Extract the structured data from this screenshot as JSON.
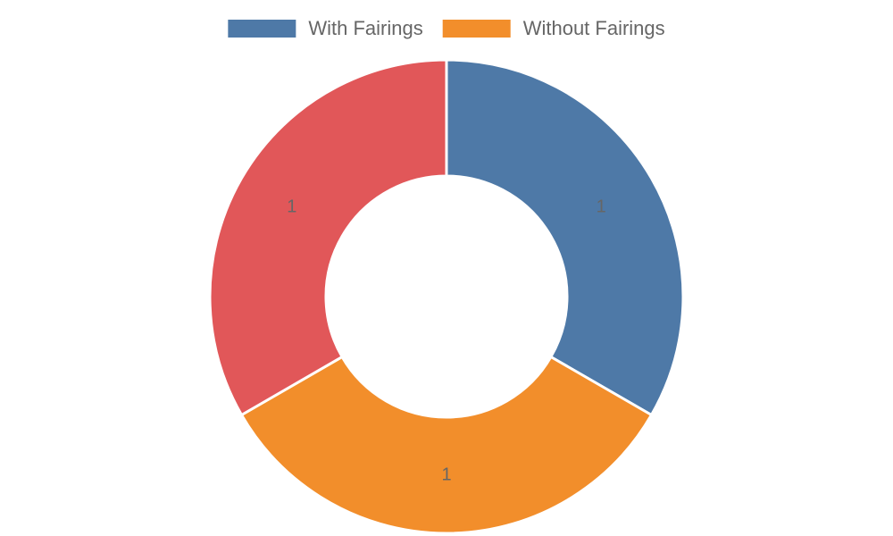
{
  "chart_data": {
    "type": "doughnut",
    "categories": [
      "With Fairings",
      "Without Fairings",
      null
    ],
    "values": [
      1,
      1,
      1
    ],
    "colors": [
      "#4e79a7",
      "#f28e2b",
      "#e15759"
    ],
    "legend": "top"
  }
}
